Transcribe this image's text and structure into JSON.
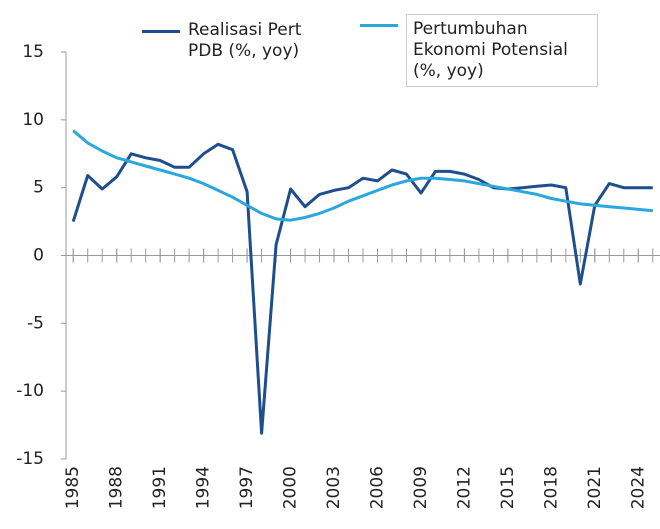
{
  "chart_data": {
    "type": "line",
    "x": [
      1985,
      1986,
      1987,
      1988,
      1989,
      1990,
      1991,
      1992,
      1993,
      1994,
      1995,
      1996,
      1997,
      1998,
      1999,
      2000,
      2001,
      2002,
      2003,
      2004,
      2005,
      2006,
      2007,
      2008,
      2009,
      2010,
      2011,
      2012,
      2013,
      2014,
      2015,
      2016,
      2017,
      2018,
      2019,
      2020,
      2021,
      2022,
      2023,
      2024,
      2025
    ],
    "series": [
      {
        "name": "Realisasi Pert PDB (%, yoy)",
        "color": "#1f4e8c",
        "values": [
          2.5,
          5.9,
          4.9,
          5.8,
          7.5,
          7.2,
          7.0,
          6.5,
          6.5,
          7.5,
          8.2,
          7.8,
          4.7,
          -13.1,
          0.8,
          4.9,
          3.6,
          4.5,
          4.8,
          5.0,
          5.7,
          5.5,
          6.3,
          6.0,
          4.6,
          6.2,
          6.2,
          6.0,
          5.6,
          5.0,
          4.9,
          5.0,
          5.1,
          5.2,
          5.0,
          -2.1,
          3.7,
          5.3,
          5.0,
          5.0,
          5.0
        ]
      },
      {
        "name": "Pertumbuhan Ekonomi Potensial (%, yoy)",
        "color": "#2aa7dc",
        "values": [
          9.2,
          8.3,
          7.7,
          7.2,
          6.9,
          6.6,
          6.3,
          6.0,
          5.7,
          5.3,
          4.8,
          4.3,
          3.7,
          3.1,
          2.7,
          2.6,
          2.8,
          3.1,
          3.5,
          4.0,
          4.4,
          4.8,
          5.2,
          5.5,
          5.7,
          5.7,
          5.6,
          5.5,
          5.3,
          5.1,
          4.9,
          4.7,
          4.5,
          4.2,
          4.0,
          3.8,
          3.7,
          3.6,
          3.5,
          3.4,
          3.3
        ]
      }
    ],
    "xlim": [
      1984.5,
      2025.5
    ],
    "xticks": [
      1985,
      1988,
      1991,
      1994,
      1997,
      2000,
      2003,
      2006,
      2009,
      2012,
      2015,
      2018,
      2021,
      2024
    ],
    "ylim": [
      -15,
      15
    ],
    "yticks": [
      -15,
      -10,
      -5,
      0,
      5,
      10,
      15
    ]
  }
}
